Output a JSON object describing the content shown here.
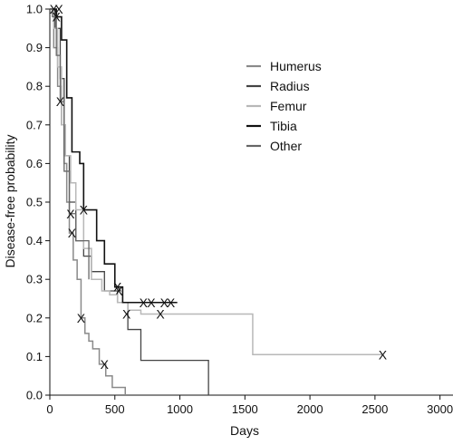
{
  "chart_data": {
    "type": "line",
    "step": true,
    "title": "",
    "xlabel": "Days",
    "ylabel": "Disease-free probability",
    "xlim": [
      0,
      3100
    ],
    "ylim": [
      0,
      1.0
    ],
    "xticks": [
      0,
      500,
      1000,
      1500,
      2000,
      2500,
      3000
    ],
    "yticks": [
      0.0,
      0.1,
      0.2,
      0.3,
      0.4,
      0.5,
      0.6,
      0.7,
      0.8,
      0.9,
      1.0
    ],
    "xtick_labels": [
      "0",
      "500",
      "1000",
      "1500",
      "2000",
      "2500",
      "3000"
    ],
    "ytick_labels": [
      "0.0",
      "0.1",
      "0.2",
      "0.3",
      "0.4",
      "0.5",
      "0.6",
      "0.7",
      "0.8",
      "0.9",
      "1.0"
    ],
    "grid": false,
    "legend_position": "top-right",
    "censor_marker": "X",
    "series": [
      {
        "name": "Humerus",
        "color": "#8a8a8a",
        "width": 1.5,
        "x": [
          0,
          30,
          60,
          90,
          110,
          130,
          150,
          180,
          210,
          240,
          270,
          300,
          330,
          380,
          430,
          480,
          530,
          580
        ],
        "y": [
          1.0,
          0.9,
          0.8,
          0.7,
          0.6,
          0.5,
          0.42,
          0.35,
          0.3,
          0.2,
          0.16,
          0.14,
          0.12,
          0.08,
          0.05,
          0.02,
          0.02,
          0.0
        ],
        "censored": [
          [
            240,
            0.2
          ],
          [
            420,
            0.08
          ]
        ]
      },
      {
        "name": "Radius",
        "color": "#444444",
        "width": 1.3,
        "x": [
          0,
          40,
          80,
          110,
          150,
          200,
          260,
          320,
          420,
          520,
          600,
          700,
          1220
        ],
        "y": [
          1.0,
          0.95,
          0.82,
          0.62,
          0.5,
          0.4,
          0.36,
          0.32,
          0.27,
          0.24,
          0.17,
          0.09,
          0.0
        ],
        "censored": [
          [
            530,
            0.27
          ]
        ]
      },
      {
        "name": "Femur",
        "color": "#b8b8b8",
        "width": 1.5,
        "x": [
          0,
          30,
          60,
          90,
          120,
          160,
          200,
          260,
          320,
          400,
          460,
          520,
          600,
          700,
          1560,
          2560
        ],
        "y": [
          1.0,
          0.95,
          0.85,
          0.7,
          0.62,
          0.55,
          0.48,
          0.38,
          0.3,
          0.27,
          0.26,
          0.24,
          0.22,
          0.21,
          0.105,
          0.105
        ],
        "censored": [
          [
            850,
            0.21
          ],
          [
            2560,
            0.105
          ]
        ]
      },
      {
        "name": "Tibia",
        "color": "#111111",
        "width": 1.6,
        "x": [
          0,
          50,
          90,
          130,
          170,
          230,
          260,
          360,
          420,
          500,
          560,
          980
        ],
        "y": [
          1.0,
          0.98,
          0.92,
          0.77,
          0.63,
          0.6,
          0.48,
          0.4,
          0.34,
          0.28,
          0.24,
          0.24
        ],
        "censored": [
          [
            70,
            1.0
          ],
          [
            260,
            0.48
          ],
          [
            520,
            0.28
          ],
          [
            720,
            0.24
          ],
          [
            780,
            0.24
          ],
          [
            880,
            0.24
          ],
          [
            930,
            0.24
          ]
        ]
      },
      {
        "name": "Other",
        "color": "#666666",
        "width": 1.3,
        "x": [
          0,
          20,
          50,
          80,
          110,
          150,
          200,
          240,
          300
        ],
        "y": [
          1.0,
          0.98,
          0.88,
          0.76,
          0.58,
          0.47,
          0.4,
          0.4,
          0.3
        ],
        "censored": [
          [
            30,
            1.0
          ],
          [
            50,
            0.98
          ],
          [
            80,
            0.76
          ],
          [
            160,
            0.47
          ],
          [
            170,
            0.42
          ],
          [
            590,
            0.21
          ]
        ]
      }
    ]
  }
}
